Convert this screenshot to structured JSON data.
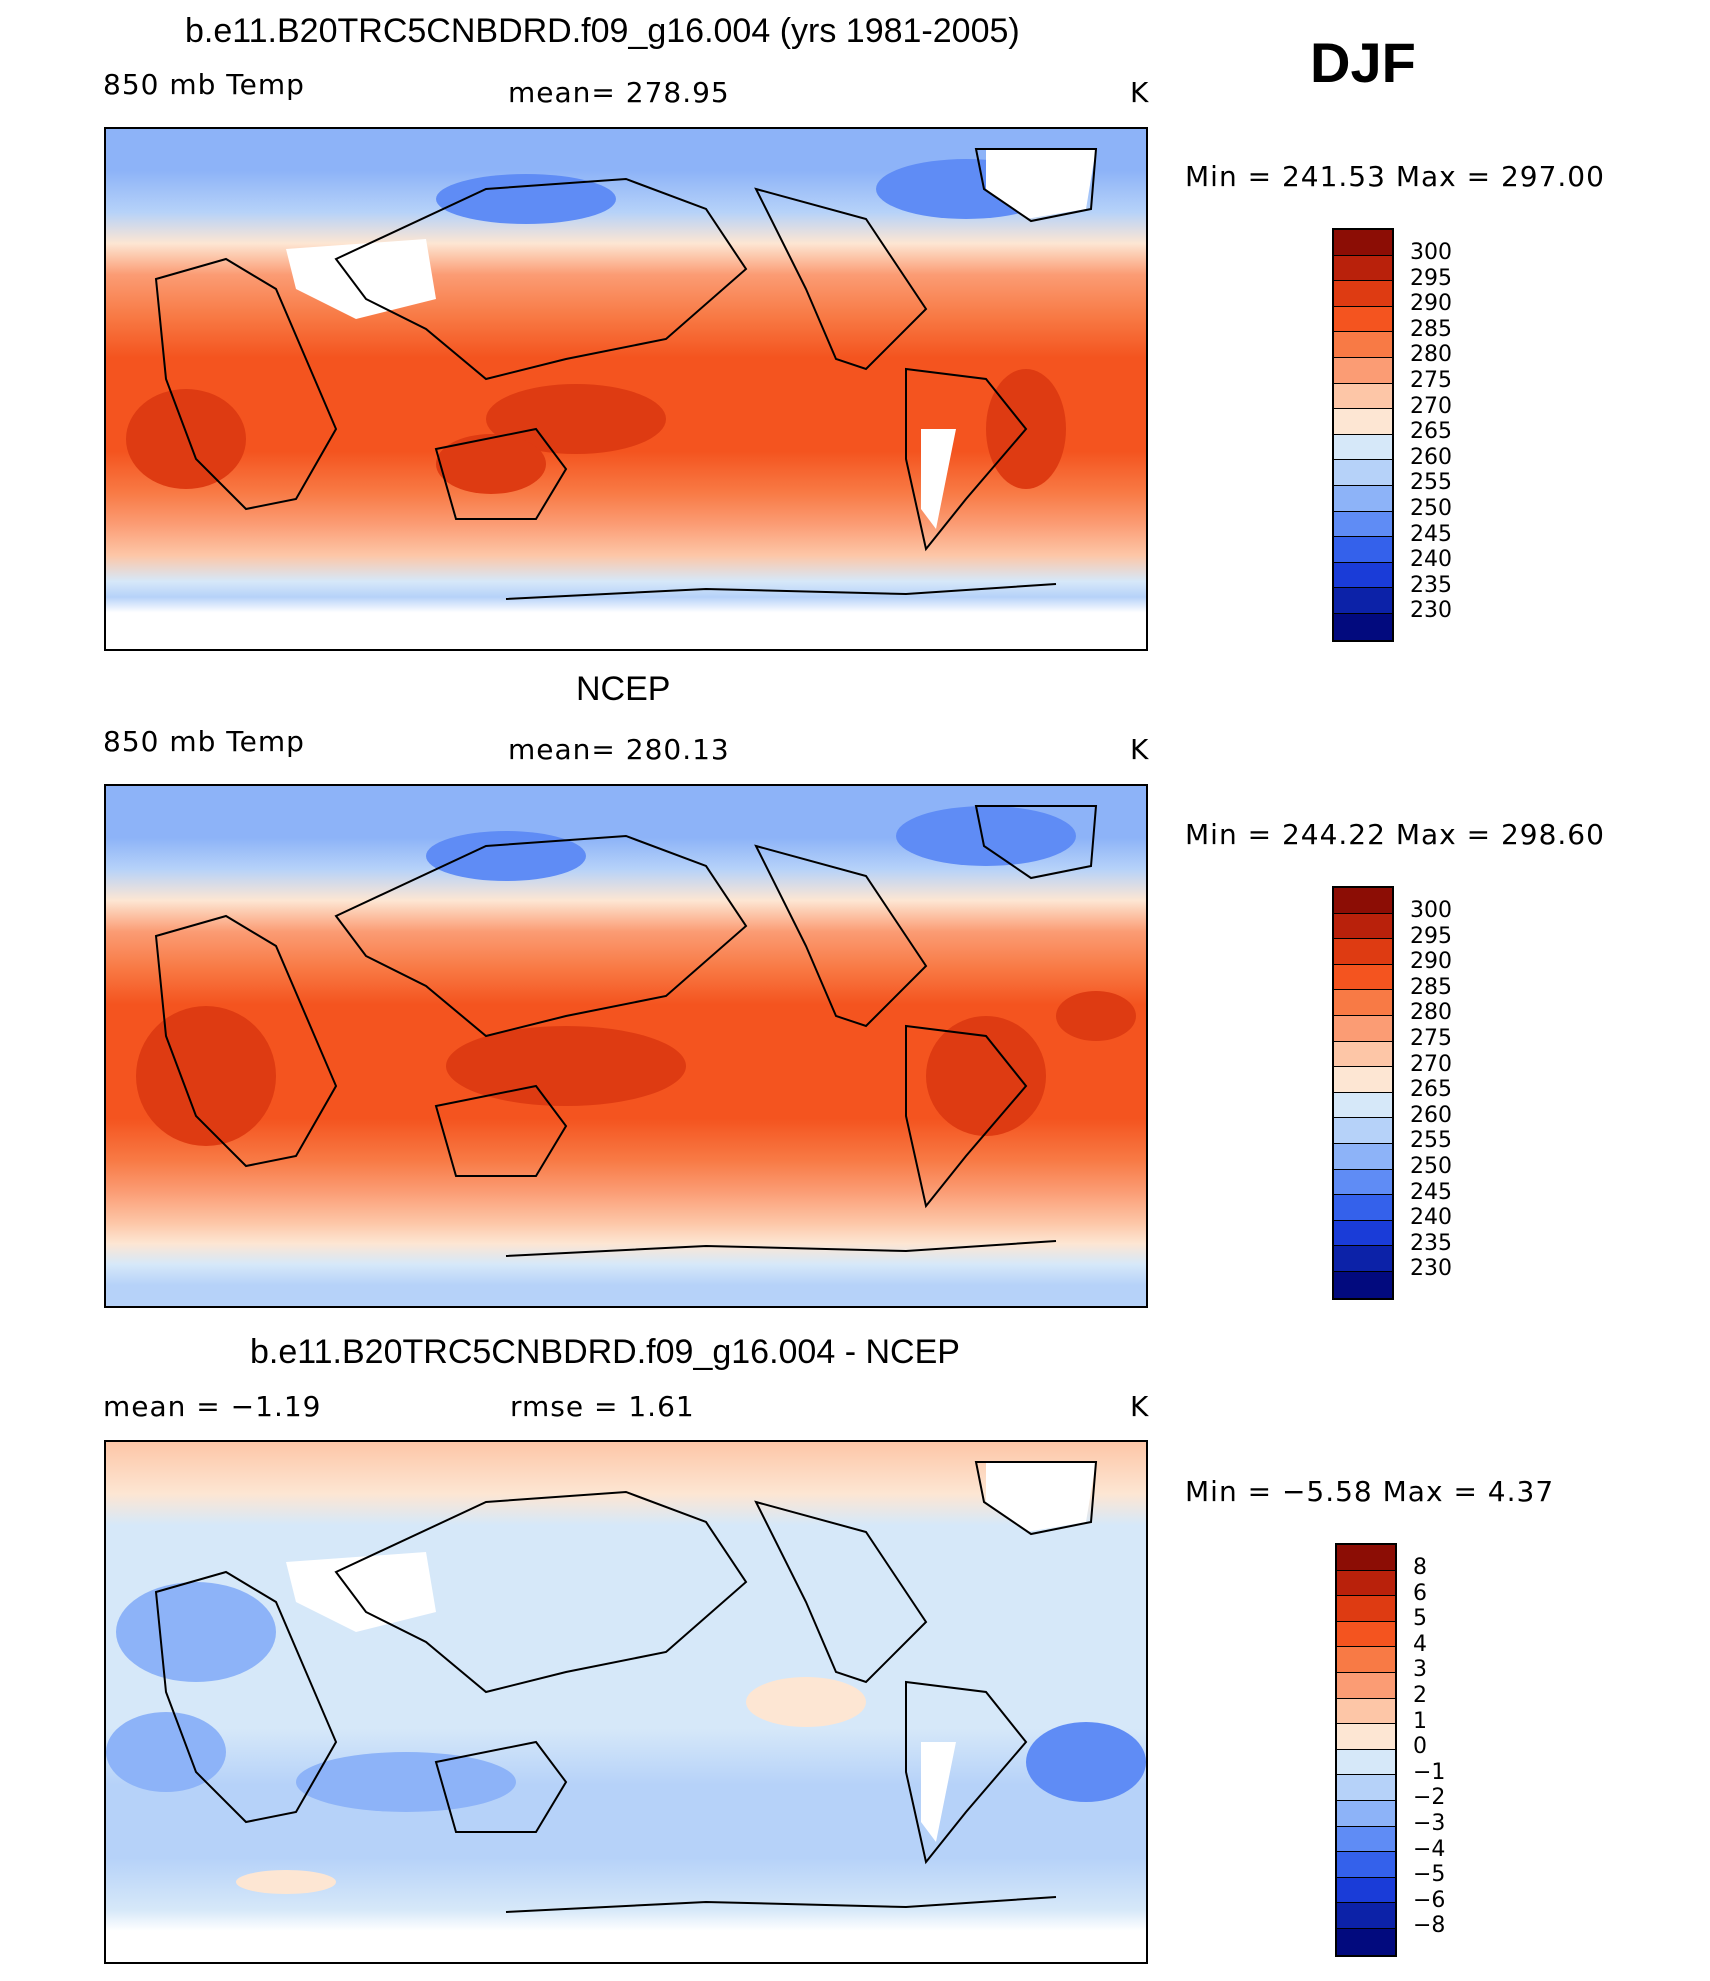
{
  "season": "DJF",
  "panels": [
    {
      "id": "model",
      "title": "b.e11.B20TRC5CNBDRD.f09_g16.004 (yrs 1981-2005)",
      "left_label": "850 mb Temp",
      "center_label": "mean=  278.95",
      "right_label": "K",
      "minmax": "Min  =  241.53  Max  =  297.00",
      "colorbar_labels": [
        "300",
        "295",
        "290",
        "285",
        "280",
        "275",
        "270",
        "265",
        "260",
        "255",
        "250",
        "245",
        "240",
        "235",
        "230"
      ]
    },
    {
      "id": "obs",
      "title": "NCEP",
      "left_label": "850 mb Temp",
      "center_label": "mean=  280.13",
      "right_label": "K",
      "minmax": "Min  =  244.22  Max  =  298.60",
      "colorbar_labels": [
        "300",
        "295",
        "290",
        "285",
        "280",
        "275",
        "270",
        "265",
        "260",
        "255",
        "250",
        "245",
        "240",
        "235",
        "230"
      ]
    },
    {
      "id": "diff",
      "title": "b.e11.B20TRC5CNBDRD.f09_g16.004 - NCEP",
      "left_label": "mean  =    −1.19",
      "center_label": "rmse  =     1.61",
      "right_label": "K",
      "minmax": "Min  =    −5.58  Max  =     4.37",
      "colorbar_labels": [
        "8",
        "6",
        "5",
        "4",
        "3",
        "2",
        "1",
        "0",
        "−1",
        "−2",
        "−3",
        "−4",
        "−5",
        "−6",
        "−8"
      ]
    }
  ],
  "colorbar_colors": [
    "#8c0d05",
    "#b9210b",
    "#de3b12",
    "#f4541f",
    "#f87a45",
    "#fb9c74",
    "#fdc6a7",
    "#fde6d3",
    "#d6e8f9",
    "#b6d2f9",
    "#8db3f8",
    "#5f8cf5",
    "#3461eb",
    "#1a3cd8",
    "#0c22a8",
    "#020a7e"
  ]
}
